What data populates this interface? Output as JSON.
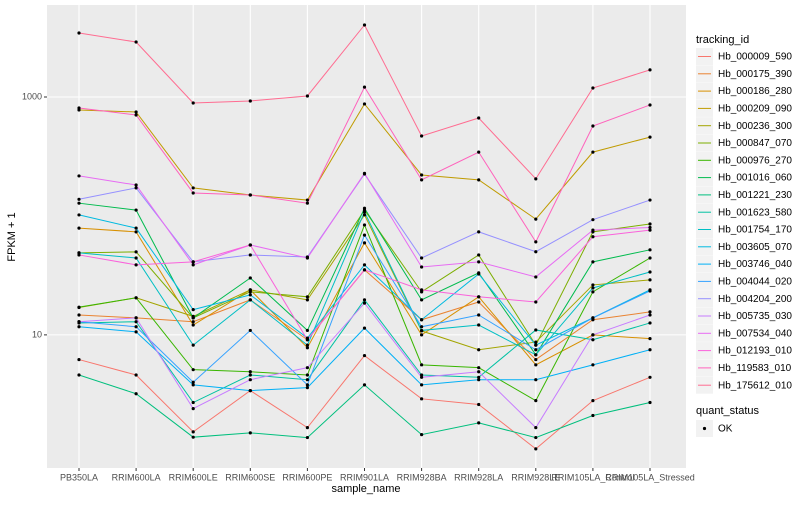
{
  "chart_data": {
    "type": "line",
    "log_y": true,
    "grid": true,
    "x_label": "sample_name",
    "y_label": "FPKM + 1",
    "legend_title": "tracking_id",
    "legend_position": "right",
    "point_color": "#000000",
    "shape_legend_title": "quant_status",
    "shape_legend_labels": [
      "OK"
    ],
    "categories": [
      "PB350LA",
      "RRIM600LA",
      "RRIM600LE",
      "RRIM600SE",
      "RRIM600PE",
      "RRIM901LA",
      "RRIM928BA",
      "RRIM928LA",
      "RRIM928LE",
      "RRIM105LA_Control",
      "RRIM105LA_Stressed"
    ],
    "ylim": [
      0.76,
      5935
    ],
    "yticks": [
      10,
      1000
    ],
    "series": [
      {
        "name": "Hb_000009_590",
        "color": "#F8766D",
        "values": [
          6.2,
          4.6,
          1.53,
          3.4,
          1.66,
          6.7,
          2.9,
          2.6,
          1.1,
          2.8,
          4.4
        ]
      },
      {
        "name": "Hb_000175_390",
        "color": "#EA8331",
        "values": [
          14.7,
          13.9,
          12.9,
          19.7,
          9.1,
          35.2,
          13.4,
          18.9,
          6.2,
          13.4,
          15.6
        ]
      },
      {
        "name": "Hb_000186_280",
        "color": "#D89000",
        "values": [
          79,
          73.5,
          12.1,
          23.9,
          7.8,
          59.4,
          10,
          20.9,
          5.6,
          10,
          9.3
        ]
      },
      {
        "name": "Hb_000209_090",
        "color": "#C09B00",
        "values": [
          778,
          748,
          172,
          150,
          136,
          874,
          221,
          201,
          94,
          344,
          460
        ]
      },
      {
        "name": "Hb_000236_300",
        "color": "#A3A500",
        "values": [
          17,
          20.5,
          14.3,
          23.9,
          19.7,
          102,
          10.8,
          7.5,
          8.7,
          26.3,
          29
        ]
      },
      {
        "name": "Hb_000847_070",
        "color": "#7CAE00",
        "values": [
          48.9,
          49.9,
          13.9,
          23,
          20.9,
          112,
          23,
          47,
          8.2,
          73.5,
          85.6
        ]
      },
      {
        "name": "Hb_000976_270",
        "color": "#39B600",
        "values": [
          17.1,
          20.5,
          5.1,
          4.9,
          4.6,
          84,
          5.6,
          5.3,
          2.8,
          23,
          44.3
        ]
      },
      {
        "name": "Hb_001016_060",
        "color": "#00BB4E",
        "values": [
          128,
          112,
          13.9,
          30.1,
          10.9,
          116,
          19.7,
          33.2,
          6.8,
          41.1,
          51.9
        ]
      },
      {
        "name": "Hb_001221_230",
        "color": "#00BF7D",
        "values": [
          4.6,
          3.2,
          1.38,
          1.5,
          1.37,
          3.8,
          1.45,
          1.82,
          1.37,
          2.1,
          2.7
        ]
      },
      {
        "name": "Hb_001623_580",
        "color": "#00C1A3",
        "values": [
          12.6,
          12.9,
          2.7,
          4.6,
          4.2,
          19.7,
          4.6,
          4.4,
          11,
          9.1,
          12.6
        ]
      },
      {
        "name": "Hb_001754_170",
        "color": "#00BFC4",
        "values": [
          48.9,
          44.3,
          8.2,
          19.7,
          8.2,
          108,
          10.9,
          12.1,
          6.8,
          24.8,
          33.8
        ]
      },
      {
        "name": "Hb_003605_070",
        "color": "#00BAE0",
        "values": [
          102,
          79,
          16.3,
          21.7,
          9.4,
          38.8,
          13.4,
          32.5,
          8.2,
          13.9,
          23.9
        ]
      },
      {
        "name": "Hb_003746_040",
        "color": "#00B0F6",
        "values": [
          11.7,
          10.6,
          3.8,
          3.4,
          3.6,
          11.4,
          3.8,
          4.2,
          4.2,
          5.6,
          7.5
        ]
      },
      {
        "name": "Hb_004044_020",
        "color": "#35A2FF",
        "values": [
          12.9,
          11.7,
          4,
          10.9,
          3.8,
          69,
          11.7,
          14.7,
          7.5,
          13.9,
          23.4
        ]
      },
      {
        "name": "Hb_004204_200",
        "color": "#9590FF",
        "values": [
          138,
          172,
          41.1,
          47,
          45.2,
          225,
          44.3,
          73.5,
          50,
          93,
          136
        ]
      },
      {
        "name": "Hb_005735_030",
        "color": "#C77CFF",
        "values": [
          12.9,
          13.9,
          2.4,
          4.2,
          5.3,
          18.5,
          4.4,
          4.9,
          1.66,
          10,
          14.7
        ]
      },
      {
        "name": "Hb_007534_040",
        "color": "#E76BF3",
        "values": [
          217,
          182,
          38.8,
          57,
          44.3,
          228,
          37.2,
          41.1,
          30.7,
          76,
          80
        ]
      },
      {
        "name": "Hb_012193_010",
        "color": "#FA62DB",
        "values": [
          47,
          38.8,
          41.1,
          57,
          9.1,
          35.2,
          23.9,
          20.9,
          18.9,
          66.8,
          76
        ]
      },
      {
        "name": "Hb_119583_010",
        "color": "#FF62BC",
        "values": [
          808,
          706,
          156,
          150,
          128,
          1210,
          201,
          344,
          60.5,
          570,
          857
        ]
      },
      {
        "name": "Hb_175612_010",
        "color": "#FF6C91",
        "values": [
          3450,
          2900,
          890,
          926,
          1020,
          4030,
          470,
          666,
          205,
          1190,
          1690
        ]
      }
    ]
  }
}
